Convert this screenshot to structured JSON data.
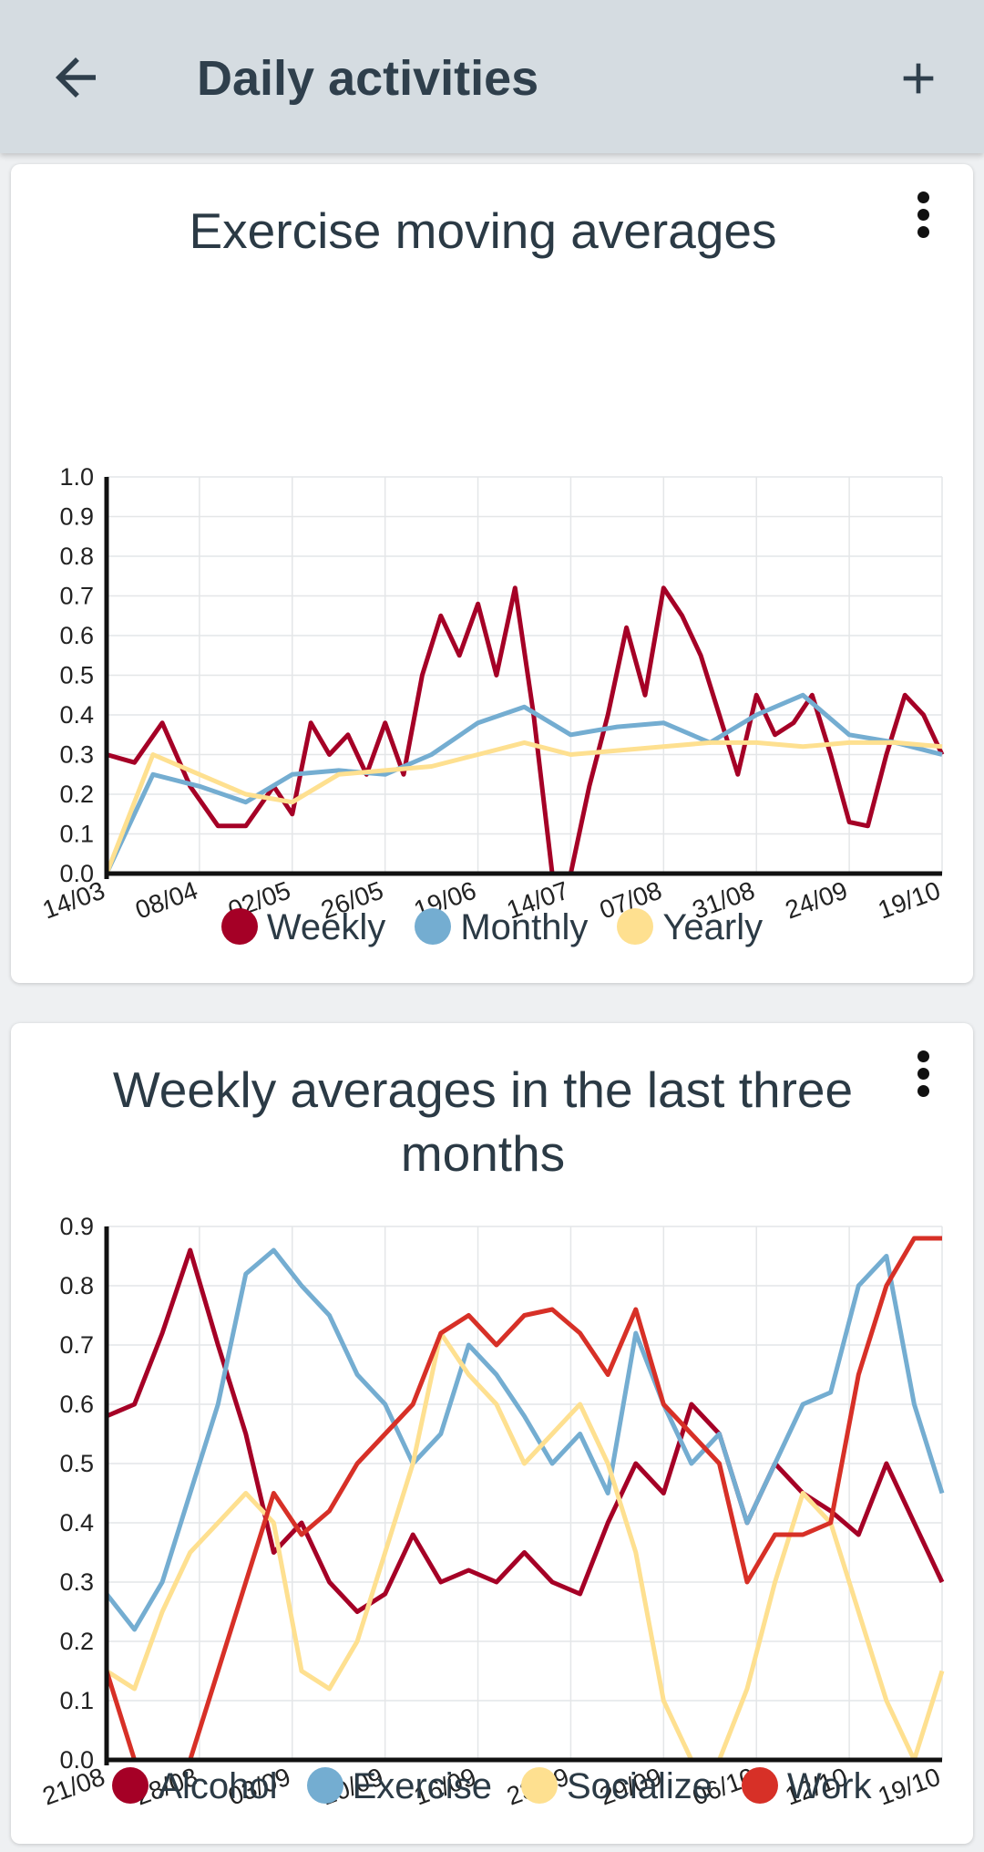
{
  "appbar": {
    "title": "Daily activities",
    "back_icon": "arrow-left-icon",
    "add_icon": "plus-icon"
  },
  "charts": {
    "exercise": {
      "menu_icon": "more-vert-icon"
    },
    "weekly": {
      "menu_icon": "more-vert-icon"
    }
  },
  "chart_data": [
    {
      "type": "line",
      "title": "Exercise moving averages",
      "xlabel": "",
      "ylabel": "",
      "ylim": [
        0,
        1.0
      ],
      "yticks": [
        "0.0",
        "0.1",
        "0.2",
        "0.3",
        "0.4",
        "0.5",
        "0.6",
        "0.7",
        "0.8",
        "0.9",
        "1.0"
      ],
      "x_tick_labels": [
        "14/03",
        "08/04",
        "02/05",
        "26/05",
        "19/06",
        "14/07",
        "07/08",
        "31/08",
        "24/09",
        "19/10"
      ],
      "grid": true,
      "legend_position": "bottom",
      "series": [
        {
          "name": "Weekly",
          "color": "#a50026",
          "x": [
            0,
            0.3,
            0.6,
            0.9,
            1.2,
            1.5,
            1.8,
            2.0,
            2.2,
            2.4,
            2.6,
            2.8,
            3.0,
            3.2,
            3.4,
            3.6,
            3.8,
            4.0,
            4.2,
            4.4,
            4.6,
            4.8,
            5.0,
            5.2,
            5.4,
            5.6,
            5.8,
            6.0,
            6.2,
            6.4,
            6.6,
            6.8,
            7.0,
            7.2,
            7.4,
            7.6,
            7.8,
            8.0,
            8.2,
            8.4,
            8.6,
            8.8,
            9.0
          ],
          "values": [
            0.3,
            0.28,
            0.38,
            0.22,
            0.12,
            0.12,
            0.22,
            0.15,
            0.38,
            0.3,
            0.35,
            0.25,
            0.38,
            0.25,
            0.5,
            0.65,
            0.55,
            0.68,
            0.5,
            0.72,
            0.4,
            0.0,
            0.0,
            0.22,
            0.4,
            0.62,
            0.45,
            0.72,
            0.65,
            0.55,
            0.4,
            0.25,
            0.45,
            0.35,
            0.38,
            0.45,
            0.3,
            0.13,
            0.12,
            0.3,
            0.45,
            0.4,
            0.3
          ]
        },
        {
          "name": "Monthly",
          "color": "#74add1",
          "x": [
            0,
            0.5,
            1,
            1.5,
            2,
            2.5,
            3,
            3.5,
            4,
            4.5,
            5,
            5.5,
            6,
            6.5,
            7,
            7.5,
            8,
            8.5,
            9
          ],
          "values": [
            0.0,
            0.25,
            0.22,
            0.18,
            0.25,
            0.26,
            0.25,
            0.3,
            0.38,
            0.42,
            0.35,
            0.37,
            0.38,
            0.33,
            0.4,
            0.45,
            0.35,
            0.33,
            0.3
          ]
        },
        {
          "name": "Yearly",
          "color": "#fee090",
          "x": [
            0,
            0.5,
            1,
            1.5,
            2,
            2.5,
            3,
            3.5,
            4,
            4.5,
            5,
            5.5,
            6,
            6.5,
            7,
            7.5,
            8,
            8.5,
            9
          ],
          "values": [
            0.0,
            0.3,
            0.25,
            0.2,
            0.18,
            0.25,
            0.26,
            0.27,
            0.3,
            0.33,
            0.3,
            0.31,
            0.32,
            0.33,
            0.33,
            0.32,
            0.33,
            0.33,
            0.32
          ]
        }
      ]
    },
    {
      "type": "line",
      "title": "Weekly averages in the last three months",
      "xlabel": "",
      "ylabel": "",
      "ylim": [
        0,
        0.9
      ],
      "yticks": [
        "0.0",
        "0.1",
        "0.2",
        "0.3",
        "0.4",
        "0.5",
        "0.6",
        "0.7",
        "0.8",
        "0.9"
      ],
      "x_tick_labels": [
        "21/08",
        "28/08",
        "03/09",
        "10/09",
        "16/09",
        "23/09",
        "29/09",
        "06/10",
        "12/10",
        "19/10"
      ],
      "grid": true,
      "legend_position": "bottom",
      "series": [
        {
          "name": "Alcohol",
          "color": "#a50026",
          "x": [
            0,
            0.3,
            0.6,
            0.9,
            1.2,
            1.5,
            1.8,
            2.1,
            2.4,
            2.7,
            3.0,
            3.3,
            3.6,
            3.9,
            4.2,
            4.5,
            4.8,
            5.1,
            5.4,
            5.7,
            6.0,
            6.3,
            6.6,
            6.9,
            7.2,
            7.5,
            7.8,
            8.1,
            8.4,
            8.7,
            9.0
          ],
          "values": [
            0.58,
            0.6,
            0.72,
            0.86,
            0.7,
            0.55,
            0.35,
            0.4,
            0.3,
            0.25,
            0.28,
            0.38,
            0.3,
            0.32,
            0.3,
            0.35,
            0.3,
            0.28,
            0.4,
            0.5,
            0.45,
            0.6,
            0.55,
            0.4,
            0.5,
            0.45,
            0.42,
            0.38,
            0.5,
            0.4,
            0.3
          ]
        },
        {
          "name": "Exercise",
          "color": "#74add1",
          "x": [
            0,
            0.3,
            0.6,
            0.9,
            1.2,
            1.5,
            1.8,
            2.1,
            2.4,
            2.7,
            3.0,
            3.3,
            3.6,
            3.9,
            4.2,
            4.5,
            4.8,
            5.1,
            5.4,
            5.7,
            6.0,
            6.3,
            6.6,
            6.9,
            7.2,
            7.5,
            7.8,
            8.1,
            8.4,
            8.7,
            9.0
          ],
          "values": [
            0.28,
            0.22,
            0.3,
            0.45,
            0.6,
            0.82,
            0.86,
            0.8,
            0.75,
            0.65,
            0.6,
            0.5,
            0.55,
            0.7,
            0.65,
            0.58,
            0.5,
            0.55,
            0.45,
            0.72,
            0.6,
            0.5,
            0.55,
            0.4,
            0.5,
            0.6,
            0.62,
            0.8,
            0.85,
            0.6,
            0.45
          ]
        },
        {
          "name": "Socialize",
          "color": "#fee090",
          "x": [
            0,
            0.3,
            0.6,
            0.9,
            1.2,
            1.5,
            1.8,
            2.1,
            2.4,
            2.7,
            3.0,
            3.3,
            3.6,
            3.9,
            4.2,
            4.5,
            4.8,
            5.1,
            5.4,
            5.7,
            6.0,
            6.3,
            6.6,
            6.9,
            7.2,
            7.5,
            7.8,
            8.1,
            8.4,
            8.7,
            9.0
          ],
          "values": [
            0.15,
            0.12,
            0.25,
            0.35,
            0.4,
            0.45,
            0.4,
            0.15,
            0.12,
            0.2,
            0.35,
            0.5,
            0.72,
            0.65,
            0.6,
            0.5,
            0.55,
            0.6,
            0.5,
            0.35,
            0.1,
            0.0,
            0.0,
            0.12,
            0.3,
            0.45,
            0.4,
            0.25,
            0.1,
            0.0,
            0.15
          ]
        },
        {
          "name": "Work",
          "color": "#d73027",
          "x": [
            0,
            0.3,
            0.6,
            0.9,
            1.2,
            1.5,
            1.8,
            2.1,
            2.4,
            2.7,
            3.0,
            3.3,
            3.6,
            3.9,
            4.2,
            4.5,
            4.8,
            5.1,
            5.4,
            5.7,
            6.0,
            6.3,
            6.6,
            6.9,
            7.2,
            7.5,
            7.8,
            8.1,
            8.4,
            8.7,
            9.0
          ],
          "values": [
            0.15,
            0.0,
            0.0,
            0.0,
            0.15,
            0.3,
            0.45,
            0.38,
            0.42,
            0.5,
            0.55,
            0.6,
            0.72,
            0.75,
            0.7,
            0.75,
            0.76,
            0.72,
            0.65,
            0.76,
            0.6,
            0.55,
            0.5,
            0.3,
            0.38,
            0.38,
            0.4,
            0.65,
            0.8,
            0.88,
            0.88
          ]
        }
      ]
    }
  ]
}
